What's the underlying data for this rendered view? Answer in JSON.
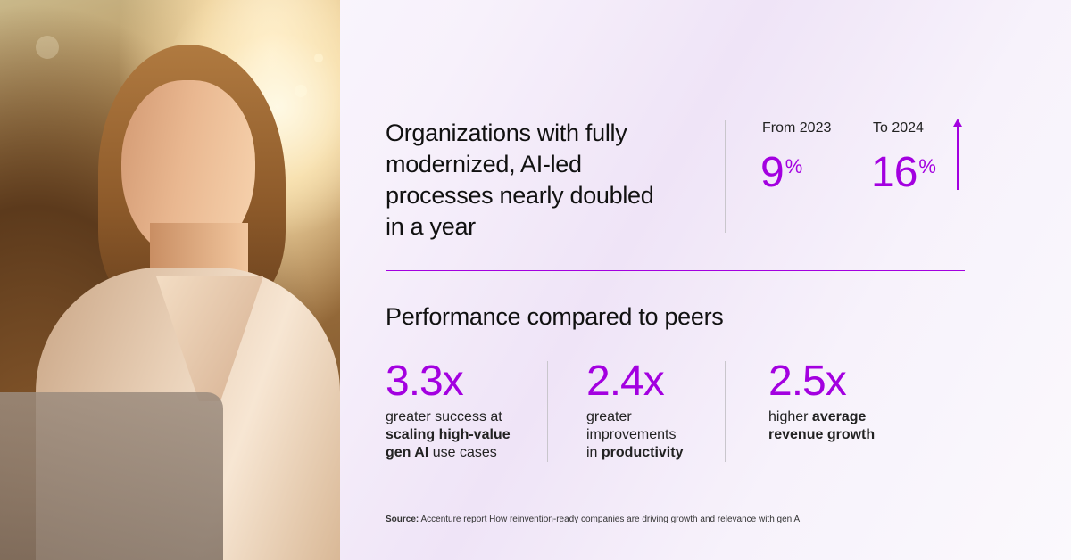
{
  "headline": [
    "Organizations with fully",
    "modernized, AI-led",
    "processes nearly doubled",
    "in a year"
  ],
  "comparison": {
    "from_label": "From 2023",
    "from_value": "9",
    "to_label": "To 2024",
    "to_value": "16",
    "unit": "%"
  },
  "performance": {
    "title": "Performance compared to peers",
    "stats": [
      {
        "value": "3.3x",
        "lines": [
          [
            {
              "t": "greater success at",
              "b": false
            }
          ],
          [
            {
              "t": "scaling high-value",
              "b": true
            }
          ],
          [
            {
              "t": "gen AI",
              "b": true
            },
            {
              "t": " use cases",
              "b": false
            }
          ]
        ]
      },
      {
        "value": "2.4x",
        "lines": [
          [
            {
              "t": "greater",
              "b": false
            }
          ],
          [
            {
              "t": "improvements",
              "b": false
            }
          ],
          [
            {
              "t": "in ",
              "b": false
            },
            {
              "t": "productivity",
              "b": true
            }
          ]
        ]
      },
      {
        "value": "2.5x",
        "lines": [
          [
            {
              "t": "higher ",
              "b": false
            },
            {
              "t": "average",
              "b": true
            }
          ],
          [
            {
              "t": "revenue growth",
              "b": true
            }
          ]
        ]
      }
    ]
  },
  "source": {
    "label": "Source:",
    "text": " Accenture report How reinvention-ready companies are driving growth and relevance with gen AI"
  },
  "colors": {
    "accent": "#a300e0"
  }
}
